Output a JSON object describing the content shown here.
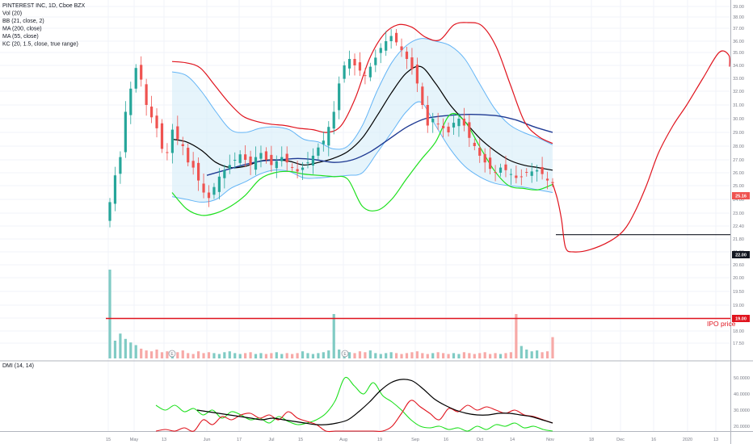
{
  "legend": {
    "symbol": "PINTEREST INC, 1D, Cboe BZX",
    "indicators": [
      "Vol (20)",
      "BB (21, close, 2)",
      "MA (200, close)",
      "MA (55, close)",
      "KC (20, 1.5, close, true range)"
    ]
  },
  "dmi_label": "DMI (14, 14)",
  "annotations": {
    "ipo_label": "IPO price",
    "earnings_marker": "E"
  },
  "price_tags": {
    "last": "25.16",
    "target": "22.00",
    "ipo": "19.00"
  },
  "colors": {
    "up": "#26a69a",
    "down": "#ef5350",
    "bb_fill": "#d6ecf8",
    "bb_line": "#64b5f6",
    "ma_black": "#000000",
    "ma_navy": "#1f3a93",
    "kc_upper": "#e0141e",
    "kc_lower": "#1ee01e",
    "drawing_red": "#e0141e",
    "target_line": "#131722",
    "ipo_line": "#e0141e",
    "dmi_plus": "#1ee01e",
    "dmi_minus": "#e0141e",
    "dmi_adx": "#000000"
  },
  "chart_data": [
    {
      "type": "candlestick",
      "title": "PINTEREST INC, 1D, Cboe BZX",
      "x_tick_labels": [
        "15",
        "May",
        "13",
        "Jun",
        "17",
        "Jul",
        "15",
        "Aug",
        "19",
        "Sep",
        "16",
        "Oct",
        "14",
        "Nov",
        "18",
        "Dec",
        "16",
        "2020",
        "13"
      ],
      "y_tick_labels": [
        "39.00",
        "38.00",
        "37.00",
        "36.00",
        "35.00",
        "34.00",
        "33.00",
        "32.00",
        "31.00",
        "30.00",
        "29.00",
        "28.00",
        "27.00",
        "26.00",
        "25.00",
        "24.00",
        "23.00",
        "22.40",
        "21.80",
        "21.20",
        "20.60",
        "20.00",
        "19.50",
        "19.00",
        "18.50",
        "18.00",
        "17.50"
      ],
      "ylim": [
        17.3,
        39.2
      ],
      "ohlc_close": [
        23.8,
        25.8,
        27.2,
        30.5,
        32.2,
        33.8,
        32.9,
        31.0,
        30.1,
        29.3,
        27.8,
        27.5,
        29.2,
        28.5,
        28.0,
        26.8,
        26.4,
        25.4,
        24.5,
        24.1,
        24.9,
        25.7,
        26.2,
        26.6,
        27.0,
        27.4,
        27.0,
        26.6,
        27.2,
        27.5,
        27.0,
        26.6,
        26.9,
        27.2,
        26.8,
        26.4,
        26.1,
        26.4,
        26.8,
        27.3,
        27.9,
        28.4,
        29.4,
        30.5,
        32.6,
        34.0,
        34.5,
        34.0,
        33.6,
        33.2,
        33.9,
        34.6,
        35.4,
        36.0,
        36.4,
        35.9,
        35.2,
        34.5,
        33.7,
        32.6,
        31.0,
        29.5,
        30.0,
        29.6,
        29.3,
        29.0,
        29.7,
        30.0,
        29.5,
        28.6,
        28.0,
        27.3,
        26.8,
        26.3,
        26.0,
        26.4,
        26.2,
        25.9,
        25.6,
        25.7,
        26.0,
        26.1,
        26.2,
        25.9,
        25.4,
        25.2
      ],
      "last_close": 25.16,
      "series": [
        {
          "name": "BB (21, close, 2)",
          "upper_samples": [
            33.5,
            33.2,
            32.0,
            30.5,
            29.2,
            29.0,
            29.3,
            29.4,
            29.2,
            28.5,
            28.3,
            27.8,
            28.0,
            29.5,
            32.0,
            34.2,
            35.6,
            36.2,
            36.0,
            35.6,
            34.5,
            32.6,
            30.8,
            29.6,
            29.0,
            28.6,
            28.1
          ]
        },
        {
          "name": "BB (21, close, 2)",
          "basis_samples": [
            28.5,
            28.3,
            27.7,
            26.8,
            26.4,
            26.5,
            26.9,
            27.0,
            26.9,
            26.6,
            26.8,
            27.1,
            27.6,
            28.6,
            30.2,
            31.9,
            33.4,
            33.9,
            32.6,
            31.0,
            29.8,
            28.6,
            27.7,
            27.0,
            26.6,
            26.4,
            26.2
          ]
        },
        {
          "name": "BB (21, close, 2)",
          "lower_samples": [
            24.2,
            24.0,
            23.8,
            24.0,
            24.8,
            25.3,
            25.9,
            26.2,
            26.1,
            25.6,
            25.6,
            25.7,
            25.8,
            26.0,
            27.5,
            29.0,
            30.5,
            31.2,
            29.5,
            27.8,
            26.5,
            25.7,
            25.2,
            25.0,
            24.9,
            24.7,
            24.5
          ]
        },
        {
          "name": "MA (55, close)",
          "samples": [
            25.8,
            26.2,
            26.6,
            26.9,
            27.0,
            27.1,
            27.0,
            26.8,
            27.0,
            27.6,
            28.5,
            29.4,
            30.0,
            30.2,
            30.3,
            30.3,
            30.2,
            29.9,
            29.4,
            29.0
          ]
        },
        {
          "name": "KC (20, 1.5, close, true range)",
          "upper_samples": [
            34.3,
            34.2,
            33.8,
            32.5,
            31.2,
            30.2,
            29.8,
            29.6,
            29.5,
            29.3,
            29.2,
            29.0,
            29.5,
            31.5,
            34.5,
            36.5,
            37.3,
            37.1,
            36.3,
            36.1,
            37.3,
            37.5,
            37.2,
            35.5,
            32.5,
            29.8,
            28.7,
            28.2
          ]
        },
        {
          "name": "KC (20, 1.5, close, true range)",
          "lower_samples": [
            24.5,
            23.3,
            22.9,
            23.0,
            23.5,
            24.3,
            25.5,
            26.0,
            26.1,
            25.9,
            25.8,
            25.7,
            25.5,
            23.5,
            23.2,
            24.0,
            25.5,
            27.0,
            28.3,
            30.3,
            29.8,
            28.0,
            26.2,
            25.0,
            24.8,
            24.7,
            25.1
          ]
        },
        {
          "name": "Vol (20)",
          "values": [
            1.0,
            0.2,
            0.28,
            0.22,
            0.18,
            0.15,
            0.11,
            0.09,
            0.08,
            0.1,
            0.07,
            0.08,
            0.06,
            0.07,
            0.09,
            0.06,
            0.05,
            0.08,
            0.06,
            0.07,
            0.06,
            0.05,
            0.07,
            0.08,
            0.06,
            0.05,
            0.06,
            0.07,
            0.05,
            0.06,
            0.05,
            0.06,
            0.07,
            0.05,
            0.06,
            0.05,
            0.06,
            0.08,
            0.06,
            0.05,
            0.06,
            0.07,
            0.09,
            0.5,
            0.1,
            0.08,
            0.07,
            0.06,
            0.08,
            0.07,
            0.09,
            0.06,
            0.05,
            0.06,
            0.07,
            0.06,
            0.05,
            0.06,
            0.07,
            0.08,
            0.06,
            0.05,
            0.06,
            0.07,
            0.06,
            0.05,
            0.06,
            0.05,
            0.07,
            0.06,
            0.05,
            0.06,
            0.07,
            0.05,
            0.06,
            0.05,
            0.06,
            0.07,
            0.5,
            0.14,
            0.1,
            0.08,
            0.09,
            0.07,
            0.08,
            0.24
          ]
        }
      ],
      "horizontal_levels": [
        {
          "price": 22.0,
          "label": "22.00"
        },
        {
          "price": 19.0,
          "label": "IPO price"
        }
      ],
      "drawing_path_prices": [
        25.16,
        24.0,
        22.7,
        21.4,
        21.2,
        21.3,
        21.7,
        22.2,
        23.0,
        25.0,
        27.5,
        29.5,
        31.0,
        33.0,
        35.0,
        34.8,
        33.9
      ]
    },
    {
      "type": "line",
      "title": "DMI (14, 14)",
      "y_tick_labels": [
        "50.0000",
        "40.0000",
        "30.0000",
        "20.0000",
        "10.0000"
      ],
      "ylim": [
        7,
        53
      ],
      "series": [
        {
          "name": "+DI",
          "values": [
            33,
            30,
            33,
            29,
            31,
            27,
            30,
            25,
            29,
            27,
            24,
            25,
            22,
            26,
            23,
            21,
            22,
            24,
            28,
            36,
            50,
            45,
            40,
            47,
            39,
            35,
            30,
            24,
            20,
            19,
            20,
            18,
            19,
            17,
            20,
            18,
            21,
            20,
            22,
            19,
            20,
            18,
            17
          ]
        },
        {
          "name": "-DI",
          "values": [
            15,
            18,
            14,
            19,
            16,
            24,
            21,
            26,
            24,
            27,
            28,
            25,
            27,
            24,
            29,
            25,
            23,
            21,
            16,
            14,
            12,
            10,
            11,
            12,
            16,
            20,
            28,
            36,
            32,
            28,
            24,
            31,
            29,
            33,
            30,
            32,
            30,
            28,
            30,
            27,
            26,
            24,
            22
          ]
        },
        {
          "name": "ADX",
          "values": [
            30,
            29,
            28,
            27,
            26,
            25,
            24,
            25,
            24,
            23,
            22,
            21,
            21,
            22,
            24,
            29,
            35,
            42,
            47,
            49,
            48,
            43,
            37,
            33,
            30,
            28,
            27,
            27,
            28,
            28,
            27,
            26,
            24,
            22
          ]
        }
      ]
    }
  ]
}
